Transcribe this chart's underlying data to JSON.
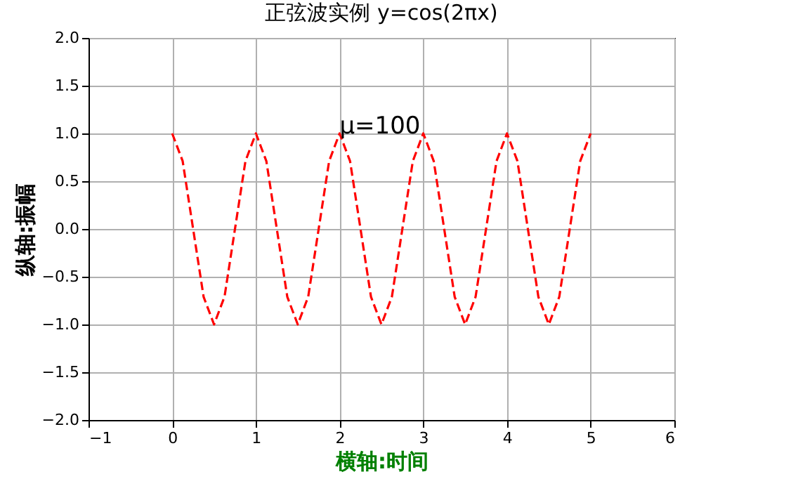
{
  "chart_data": {
    "type": "line",
    "title": "正弦波实例 y=cos(2πx)",
    "xlabel": "横轴:时间",
    "ylabel": "纵轴:振幅",
    "x": [
      0,
      0.125,
      0.25,
      0.375,
      0.5,
      0.625,
      0.75,
      0.875,
      1,
      1.125,
      1.25,
      1.375,
      1.5,
      1.625,
      1.75,
      1.875,
      2,
      2.125,
      2.25,
      2.375,
      2.5,
      2.625,
      2.75,
      2.875,
      3,
      3.125,
      3.25,
      3.375,
      3.5,
      3.625,
      3.75,
      3.875,
      4,
      4.125,
      4.25,
      4.375,
      4.5,
      4.625,
      4.75,
      4.875,
      5
    ],
    "series": [
      {
        "color": "#ff0000",
        "values": [
          1,
          0.71,
          0,
          -0.71,
          -1,
          -0.71,
          0,
          0.71,
          1,
          0.71,
          0,
          -0.71,
          -1,
          -0.71,
          0,
          0.71,
          1,
          0.71,
          0,
          -0.71,
          -1,
          -0.71,
          0,
          0.71,
          1,
          0.71,
          0,
          -0.71,
          -1,
          -0.71,
          0,
          0.71,
          1,
          0.71,
          0,
          -0.71,
          -1,
          -0.71,
          0,
          0.71,
          1
        ]
      }
    ],
    "xlim": [
      -1,
      6
    ],
    "xticks": [
      -1,
      0,
      1,
      2,
      3,
      4,
      5,
      6
    ],
    "ylim": [
      -2,
      2
    ],
    "yticks": [
      {
        "value": -2,
        "label": "−2.0"
      },
      {
        "value": -1.5,
        "label": "−1.5"
      },
      {
        "value": -1,
        "label": "−1.0"
      },
      {
        "value": -0.5,
        "label": "−0.5"
      },
      {
        "value": 0,
        "label": "0.0"
      },
      {
        "value": 0.5,
        "label": "0.5"
      },
      {
        "value": 1,
        "label": "1.0"
      },
      {
        "value": 1.5,
        "label": "1.5"
      },
      {
        "value": 2,
        "label": "2.0"
      }
    ],
    "annotations": [
      {
        "text": "μ=100",
        "x": 2,
        "y": 1
      }
    ],
    "grid": true,
    "line_style": "dashed",
    "marker": "none"
  }
}
